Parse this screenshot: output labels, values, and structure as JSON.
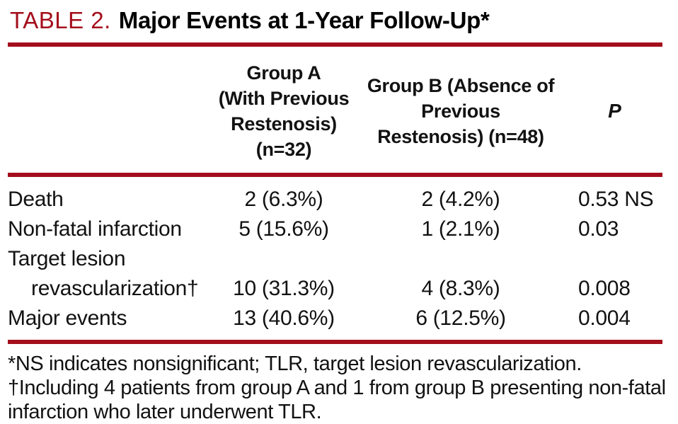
{
  "colors": {
    "accent": "#A40E1C",
    "text": "#121212",
    "background": "#FFFFFF"
  },
  "title": {
    "label": "TABLE 2.",
    "text": "Major Events at 1-Year Follow-Up*"
  },
  "table": {
    "columns": {
      "group_a": {
        "lines": [
          "Group A",
          "(With Previous",
          "Restenosis) (n=32)"
        ]
      },
      "group_b": {
        "lines": [
          "Group B (Absence of",
          "Previous",
          "Restenosis) (n=48)"
        ]
      },
      "p": {
        "label": "P"
      }
    },
    "rows": [
      {
        "label": "Death",
        "group_a": "2 (6.3%)",
        "group_b": "2 (4.2%)",
        "p": "0.53 NS"
      },
      {
        "label": "Non-fatal infarction",
        "group_a": "5 (15.6%)",
        "group_b": "1 (2.1%)",
        "p": "0.03"
      },
      {
        "label": "Target lesion",
        "group_a": "",
        "group_b": "",
        "p": ""
      },
      {
        "label": "revascularization†",
        "indent": true,
        "group_a": "10 (31.3%)",
        "group_b": "4 (8.3%)",
        "p": "0.008"
      },
      {
        "label": "Major events",
        "group_a": "13 (40.6%)",
        "group_b": "6 (12.5%)",
        "p": "0.004"
      }
    ]
  },
  "footnotes": [
    {
      "lines": [
        "*NS indicates nonsignificant; TLR, target lesion revascularization."
      ]
    },
    {
      "lines": [
        "†Including 4 patients from group A and 1 from group B presenting non-fatal",
        "infarction who later underwent TLR."
      ]
    }
  ]
}
